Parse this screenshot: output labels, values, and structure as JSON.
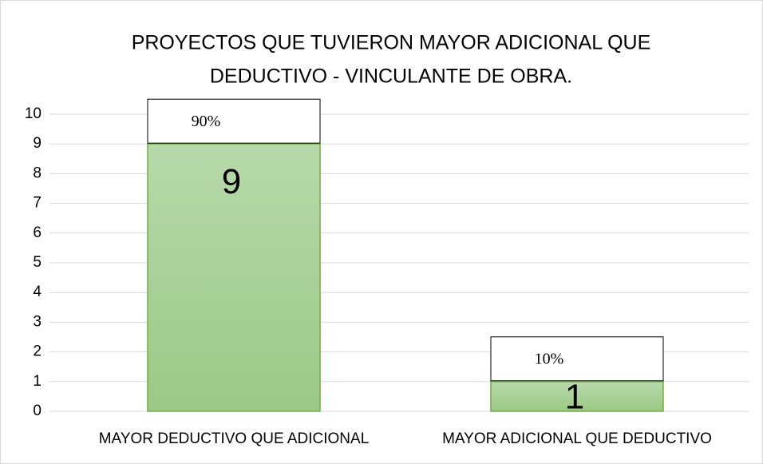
{
  "chart_data": {
    "type": "bar",
    "title": [
      "PROYECTOS QUE TUVIERON MAYOR ADICIONAL QUE",
      "DEDUCTIVO - VINCULANTE DE OBRA."
    ],
    "categories": [
      "MAYOR DEDUCTIVO QUE ADICIONAL",
      "MAYOR ADICIONAL QUE DEDUCTIVO"
    ],
    "values": [
      9,
      1
    ],
    "annotations": [
      "90%",
      "10%"
    ],
    "color": "#70ad47",
    "ylim": [
      0,
      10
    ],
    "yticks": [
      0,
      1,
      2,
      3,
      4,
      5,
      6,
      7,
      8,
      9,
      10
    ],
    "grid": true
  }
}
